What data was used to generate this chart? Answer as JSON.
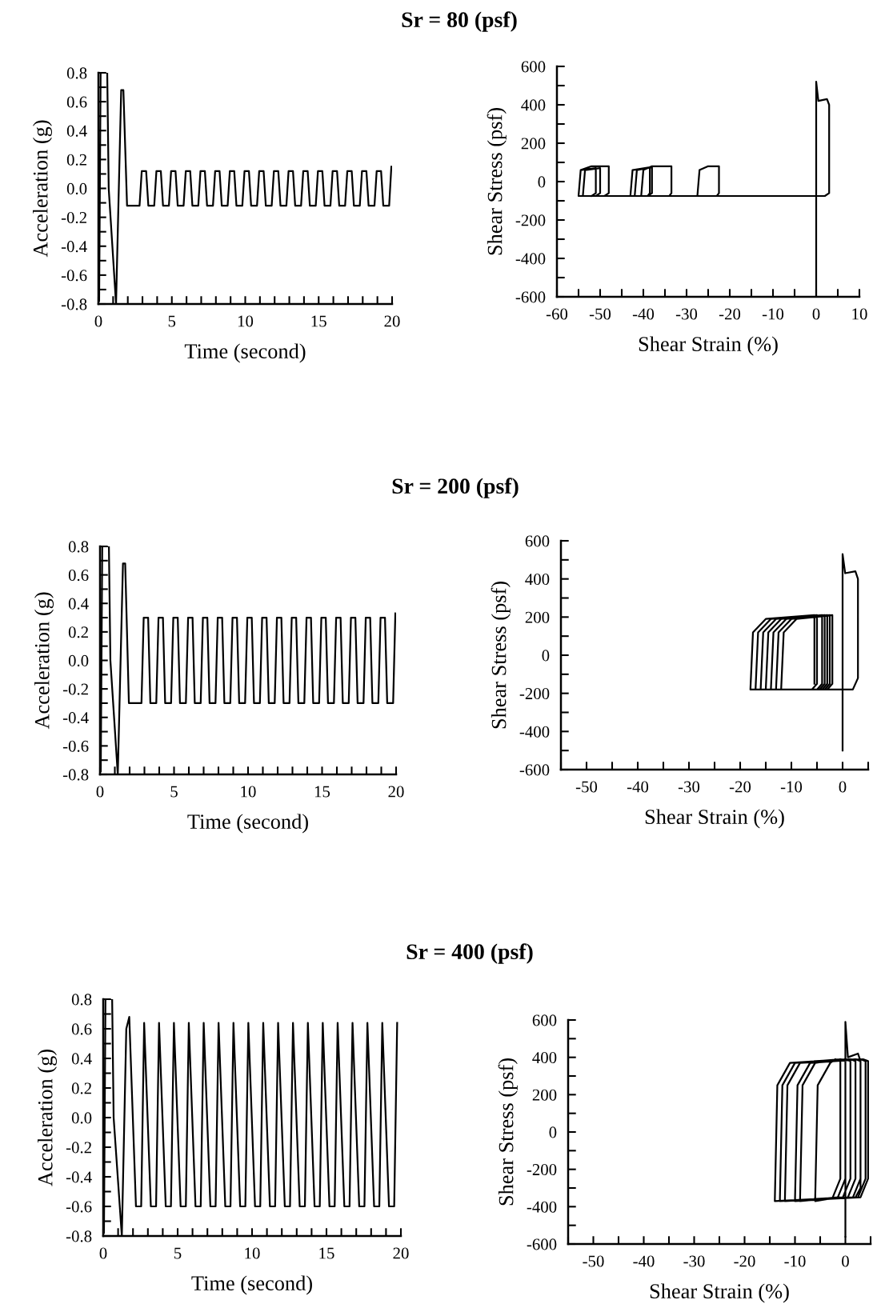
{
  "chart_data": [
    {
      "type": "line",
      "title": "Sr = 80 (psf)",
      "xlabel": "Time (second)",
      "ylabel": "Acceleration (g)",
      "xlim": [
        0,
        20
      ],
      "ylim": [
        -0.8,
        0.8
      ],
      "xticks": [
        0,
        {
          "value": 1,
          "label": null
        },
        {
          "value": 2,
          "label": null
        },
        {
          "value": 3,
          "label": null
        },
        {
          "value": 4,
          "label": null
        },
        5,
        {
          "value": 6,
          "label": null
        },
        {
          "value": 7,
          "label": null
        },
        {
          "value": 8,
          "label": null
        },
        {
          "value": 9,
          "label": null
        },
        10,
        {
          "value": 11,
          "label": null
        },
        {
          "value": 12,
          "label": null
        },
        {
          "value": 13,
          "label": null
        },
        {
          "value": 14,
          "label": null
        },
        15,
        {
          "value": 16,
          "label": null
        },
        {
          "value": 17,
          "label": null
        },
        {
          "value": 18,
          "label": null
        },
        {
          "value": 19,
          "label": null
        },
        20
      ],
      "yticks": [
        {
          "value": -0.8,
          "label": "-0.8"
        },
        {
          "value": -0.7,
          "label": null
        },
        {
          "value": -0.6,
          "label": "-0.6"
        },
        {
          "value": -0.5,
          "label": null
        },
        {
          "value": -0.4,
          "label": "-0.4"
        },
        {
          "value": -0.3,
          "label": null
        },
        {
          "value": -0.2,
          "label": "-0.2"
        },
        {
          "value": -0.1,
          "label": null
        },
        {
          "value": 0,
          "label": "0.0"
        },
        {
          "value": 0.1,
          "label": null
        },
        {
          "value": 0.2,
          "label": "0.2"
        },
        {
          "value": 0.3,
          "label": null
        },
        {
          "value": 0.4,
          "label": "0.4"
        },
        {
          "value": 0.5,
          "label": null
        },
        {
          "value": 0.6,
          "label": "0.6"
        },
        {
          "value": 0.7,
          "label": null
        },
        {
          "value": 0.8,
          "label": "0.8"
        }
      ],
      "grid": false,
      "line_style": "solid",
      "marker": "none",
      "series": [
        {
          "color": "#000000",
          "x": [
            0,
            0.05,
            0.15,
            0.6,
            0.7,
            1.2,
            1.55,
            1.7,
            1.95,
            2.8,
            2.95,
            3.25,
            3.4,
            3.8,
            3.95,
            4.25,
            4.4,
            4.8,
            4.95,
            5.25,
            5.4,
            5.8,
            5.95,
            6.25,
            6.4,
            6.8,
            6.95,
            7.25,
            7.4,
            7.8,
            7.95,
            8.25,
            8.4,
            8.8,
            8.95,
            9.25,
            9.4,
            9.8,
            9.95,
            10.25,
            10.4,
            10.8,
            10.95,
            11.25,
            11.4,
            11.8,
            11.95,
            12.25,
            12.4,
            12.8,
            12.95,
            13.25,
            13.4,
            13.8,
            13.95,
            14.25,
            14.4,
            14.8,
            14.95,
            15.25,
            15.4,
            15.8,
            15.95,
            16.25,
            16.4,
            16.8,
            16.95,
            17.25,
            17.4,
            17.8,
            17.95,
            18.25,
            18.4,
            18.8,
            18.95,
            19.25,
            19.4,
            19.8,
            19.95
          ],
          "values": [
            0,
            -0.78,
            0.8,
            0.8,
            0,
            -0.8,
            0.68,
            0.68,
            -0.12,
            -0.12,
            0.12,
            0.12,
            -0.12,
            -0.12,
            0.12,
            0.12,
            -0.12,
            -0.12,
            0.12,
            0.12,
            -0.12,
            -0.12,
            0.12,
            0.12,
            -0.12,
            -0.12,
            0.12,
            0.12,
            -0.12,
            -0.12,
            0.12,
            0.12,
            -0.12,
            -0.12,
            0.12,
            0.12,
            -0.12,
            -0.12,
            0.12,
            0.12,
            -0.12,
            -0.12,
            0.12,
            0.12,
            -0.12,
            -0.12,
            0.12,
            0.12,
            -0.12,
            -0.12,
            0.12,
            0.12,
            -0.12,
            -0.12,
            0.12,
            0.12,
            -0.12,
            -0.12,
            0.12,
            0.12,
            -0.12,
            -0.12,
            0.12,
            0.12,
            -0.12,
            -0.12,
            0.12,
            0.12,
            -0.12,
            -0.12,
            0.12,
            0.12,
            -0.12,
            -0.12,
            0.12,
            0.12,
            -0.12,
            -0.12,
            0.15
          ]
        }
      ]
    },
    {
      "type": "line",
      "xlabel": "Shear Strain (%)",
      "ylabel": "Shear Stress (psf)",
      "xlim": [
        -60,
        10
      ],
      "ylim": [
        -600,
        600
      ],
      "xticks": [
        -60,
        {
          "value": -55,
          "label": null
        },
        -50,
        {
          "value": -45,
          "label": null
        },
        -40,
        {
          "value": -35,
          "label": null
        },
        -30,
        {
          "value": -25,
          "label": null
        },
        -20,
        {
          "value": -15,
          "label": null
        },
        -10,
        {
          "value": -5,
          "label": null
        },
        0,
        {
          "value": 5,
          "label": null
        },
        10
      ],
      "yticks": [
        -600,
        {
          "value": -500,
          "label": null
        },
        -400,
        {
          "value": -300,
          "label": null
        },
        -200,
        {
          "value": -100,
          "label": null
        },
        0,
        {
          "value": 100,
          "label": null
        },
        200,
        {
          "value": 300,
          "label": null
        },
        400,
        {
          "value": 500,
          "label": null
        },
        600
      ],
      "grid": false,
      "line_style": "solid",
      "marker": "none",
      "series": [
        {
          "color": "#000000",
          "x": [
            0,
            0,
            0.5,
            2.5,
            3,
            3,
            2,
            -27.5,
            -27,
            -25,
            -22.5,
            -22.5,
            -23,
            -40.5,
            -40,
            -38,
            -33.5,
            -33.5,
            -34,
            -43,
            -42.5,
            -38.5,
            -38.5,
            -39,
            -42,
            -41.5,
            -38,
            -38,
            -39,
            -55,
            -54.5,
            -52,
            -48,
            -48,
            -49,
            -54,
            -53.5,
            -50,
            -50,
            -51,
            -55,
            -54.5,
            -51,
            -51,
            -52
          ],
          "values": [
            -600,
            520,
            420,
            430,
            400,
            -60,
            -75,
            -75,
            60,
            80,
            80,
            -60,
            -75,
            -75,
            60,
            80,
            80,
            -60,
            -75,
            -75,
            60,
            75,
            -60,
            -75,
            -75,
            60,
            75,
            -60,
            -75,
            -75,
            60,
            80,
            80,
            -60,
            -75,
            -75,
            60,
            70,
            -60,
            -75,
            -75,
            60,
            70,
            -60,
            -75
          ]
        }
      ]
    },
    {
      "type": "line",
      "title": "Sr = 200 (psf)",
      "xlabel": "Time (second)",
      "ylabel": "Acceleration (g)",
      "xlim": [
        0,
        20
      ],
      "ylim": [
        -0.8,
        0.8
      ],
      "xticks": [
        0,
        {
          "value": 1,
          "label": null
        },
        {
          "value": 2,
          "label": null
        },
        {
          "value": 3,
          "label": null
        },
        {
          "value": 4,
          "label": null
        },
        5,
        {
          "value": 6,
          "label": null
        },
        {
          "value": 7,
          "label": null
        },
        {
          "value": 8,
          "label": null
        },
        {
          "value": 9,
          "label": null
        },
        10,
        {
          "value": 11,
          "label": null
        },
        {
          "value": 12,
          "label": null
        },
        {
          "value": 13,
          "label": null
        },
        {
          "value": 14,
          "label": null
        },
        15,
        {
          "value": 16,
          "label": null
        },
        {
          "value": 17,
          "label": null
        },
        {
          "value": 18,
          "label": null
        },
        {
          "value": 19,
          "label": null
        },
        20
      ],
      "yticks": [
        {
          "value": -0.8,
          "label": "-0.8"
        },
        {
          "value": -0.7,
          "label": null
        },
        {
          "value": -0.6,
          "label": "-0.6"
        },
        {
          "value": -0.5,
          "label": null
        },
        {
          "value": -0.4,
          "label": "-0.4"
        },
        {
          "value": -0.3,
          "label": null
        },
        {
          "value": -0.2,
          "label": "-0.2"
        },
        {
          "value": -0.1,
          "label": null
        },
        {
          "value": 0,
          "label": "0.0"
        },
        {
          "value": 0.1,
          "label": null
        },
        {
          "value": 0.2,
          "label": "0.2"
        },
        {
          "value": 0.3,
          "label": null
        },
        {
          "value": 0.4,
          "label": "0.4"
        },
        {
          "value": 0.5,
          "label": null
        },
        {
          "value": 0.6,
          "label": "0.6"
        },
        {
          "value": 0.7,
          "label": null
        },
        {
          "value": 0.8,
          "label": "0.8"
        }
      ],
      "grid": false,
      "line_style": "solid",
      "marker": "none",
      "series": [
        {
          "color": "#000000",
          "x": [
            0,
            0.05,
            0.15,
            0.6,
            0.7,
            1.2,
            1.55,
            1.7,
            1.95,
            2.8,
            2.95,
            3.25,
            3.4,
            3.8,
            3.95,
            4.25,
            4.4,
            4.8,
            4.95,
            5.25,
            5.4,
            5.8,
            5.95,
            6.25,
            6.4,
            6.8,
            6.95,
            7.25,
            7.4,
            7.8,
            7.95,
            8.25,
            8.4,
            8.8,
            8.95,
            9.25,
            9.4,
            9.8,
            9.95,
            10.25,
            10.4,
            10.8,
            10.95,
            11.25,
            11.4,
            11.8,
            11.95,
            12.25,
            12.4,
            12.8,
            12.95,
            13.25,
            13.4,
            13.8,
            13.95,
            14.25,
            14.4,
            14.8,
            14.95,
            15.25,
            15.4,
            15.8,
            15.95,
            16.25,
            16.4,
            16.8,
            16.95,
            17.25,
            17.4,
            17.8,
            17.95,
            18.25,
            18.4,
            18.8,
            18.95,
            19.25,
            19.4,
            19.8,
            19.95
          ],
          "values": [
            0,
            -0.78,
            0.8,
            0.8,
            0,
            -0.8,
            0.68,
            0.68,
            -0.3,
            -0.3,
            0.3,
            0.3,
            -0.3,
            -0.3,
            0.3,
            0.3,
            -0.3,
            -0.3,
            0.3,
            0.3,
            -0.3,
            -0.3,
            0.3,
            0.3,
            -0.3,
            -0.3,
            0.3,
            0.3,
            -0.3,
            -0.3,
            0.3,
            0.3,
            -0.3,
            -0.3,
            0.3,
            0.3,
            -0.3,
            -0.3,
            0.3,
            0.3,
            -0.3,
            -0.3,
            0.3,
            0.3,
            -0.3,
            -0.3,
            0.3,
            0.3,
            -0.3,
            -0.3,
            0.3,
            0.3,
            -0.3,
            -0.3,
            0.3,
            0.3,
            -0.3,
            -0.3,
            0.3,
            0.3,
            -0.3,
            -0.3,
            0.3,
            0.3,
            -0.3,
            -0.3,
            0.3,
            0.3,
            -0.3,
            -0.3,
            0.3,
            0.3,
            -0.3,
            -0.3,
            0.3,
            0.3,
            -0.3,
            -0.3,
            0.33
          ]
        }
      ]
    },
    {
      "type": "line",
      "xlabel": "Shear Strain (%)",
      "ylabel": "Shear Stress (psf)",
      "xlim": [
        -55,
        5
      ],
      "ylim": [
        -600,
        600
      ],
      "xticks": [
        {
          "value": -55,
          "label": null
        },
        -50,
        {
          "value": -45,
          "label": null
        },
        -40,
        {
          "value": -35,
          "label": null
        },
        -30,
        {
          "value": -25,
          "label": null
        },
        -20,
        {
          "value": -15,
          "label": null
        },
        -10,
        {
          "value": -5,
          "label": null
        },
        0,
        {
          "value": 5,
          "label": null
        }
      ],
      "yticks": [
        -600,
        {
          "value": -500,
          "label": null
        },
        -400,
        {
          "value": -300,
          "label": null
        },
        -200,
        {
          "value": -100,
          "label": null
        },
        0,
        {
          "value": 100,
          "label": null
        },
        200,
        {
          "value": 300,
          "label": null
        },
        400,
        {
          "value": 500,
          "label": null
        },
        600
      ],
      "grid": false,
      "line_style": "solid",
      "marker": "none",
      "series": [
        {
          "color": "#000000",
          "x": [
            0,
            0,
            0.5,
            2.5,
            3,
            3,
            2,
            -12,
            -11.5,
            -9,
            -2,
            -2,
            -3,
            -13,
            -12.5,
            -10,
            -2.5,
            -2.5,
            -3.5,
            -14,
            -13.5,
            -11,
            -3,
            -3,
            -4,
            -15,
            -14.5,
            -12,
            -3.5,
            -3.5,
            -4.5,
            -16,
            -15.5,
            -13,
            -4,
            -4,
            -5,
            -17,
            -16.5,
            -14,
            -5,
            -5,
            -6,
            -18,
            -17.5,
            -15,
            -5.5,
            -5.5
          ],
          "values": [
            -500,
            530,
            430,
            440,
            400,
            -120,
            -180,
            -180,
            120,
            190,
            210,
            -150,
            -180,
            -180,
            120,
            190,
            210,
            -150,
            -180,
            -180,
            120,
            190,
            210,
            -150,
            -180,
            -180,
            120,
            190,
            210,
            -150,
            -180,
            -180,
            120,
            190,
            210,
            -150,
            -180,
            -180,
            120,
            190,
            210,
            -150,
            -180,
            -180,
            120,
            190,
            210,
            -150
          ]
        }
      ]
    },
    {
      "type": "line",
      "title": "Sr = 400 (psf)",
      "xlabel": "Time (second)",
      "ylabel": "Acceleration (g)",
      "xlim": [
        0,
        20
      ],
      "ylim": [
        -0.8,
        0.8
      ],
      "xticks": [
        0,
        {
          "value": 1,
          "label": null
        },
        {
          "value": 2,
          "label": null
        },
        {
          "value": 3,
          "label": null
        },
        {
          "value": 4,
          "label": null
        },
        5,
        {
          "value": 6,
          "label": null
        },
        {
          "value": 7,
          "label": null
        },
        {
          "value": 8,
          "label": null
        },
        {
          "value": 9,
          "label": null
        },
        10,
        {
          "value": 11,
          "label": null
        },
        {
          "value": 12,
          "label": null
        },
        {
          "value": 13,
          "label": null
        },
        {
          "value": 14,
          "label": null
        },
        15,
        {
          "value": 16,
          "label": null
        },
        {
          "value": 17,
          "label": null
        },
        {
          "value": 18,
          "label": null
        },
        {
          "value": 19,
          "label": null
        },
        20
      ],
      "yticks": [
        {
          "value": -0.8,
          "label": "-0.8"
        },
        {
          "value": -0.7,
          "label": null
        },
        {
          "value": -0.6,
          "label": "-0.6"
        },
        {
          "value": -0.5,
          "label": null
        },
        {
          "value": -0.4,
          "label": "-0.4"
        },
        {
          "value": -0.3,
          "label": null
        },
        {
          "value": -0.2,
          "label": "-0.2"
        },
        {
          "value": -0.1,
          "label": null
        },
        {
          "value": 0,
          "label": "0.0"
        },
        {
          "value": 0.1,
          "label": null
        },
        {
          "value": 0.2,
          "label": "0.2"
        },
        {
          "value": 0.3,
          "label": null
        },
        {
          "value": 0.4,
          "label": "0.4"
        },
        {
          "value": 0.5,
          "label": null
        },
        {
          "value": 0.6,
          "label": "0.6"
        },
        {
          "value": 0.7,
          "label": null
        },
        {
          "value": 0.8,
          "label": "0.8"
        }
      ],
      "grid": false,
      "line_style": "solid",
      "marker": "none",
      "series": [
        {
          "color": "#000000",
          "x": [
            0,
            0.05,
            0.15,
            0.6,
            0.7,
            1.25,
            1.55,
            1.75,
            2.2,
            2.55,
            2.75,
            3.2,
            3.55,
            3.75,
            4.2,
            4.55,
            4.75,
            5.2,
            5.55,
            5.75,
            6.2,
            6.55,
            6.75,
            7.2,
            7.55,
            7.75,
            8.2,
            8.55,
            8.75,
            9.2,
            9.55,
            9.75,
            10.2,
            10.55,
            10.75,
            11.2,
            11.55,
            11.75,
            12.2,
            12.55,
            12.75,
            13.2,
            13.55,
            13.75,
            14.2,
            14.55,
            14.75,
            15.2,
            15.55,
            15.75,
            16.2,
            16.55,
            16.75,
            17.2,
            17.55,
            17.75,
            18.2,
            18.55,
            18.75,
            19.2,
            19.55,
            19.75
          ],
          "values": [
            0,
            -0.78,
            0.8,
            0.8,
            0,
            -0.8,
            0.6,
            0.68,
            -0.6,
            -0.6,
            0.64,
            -0.6,
            -0.6,
            0.64,
            -0.6,
            -0.6,
            0.64,
            -0.6,
            -0.6,
            0.64,
            -0.6,
            -0.6,
            0.64,
            -0.6,
            -0.6,
            0.64,
            -0.6,
            -0.6,
            0.64,
            -0.6,
            -0.6,
            0.64,
            -0.6,
            -0.6,
            0.64,
            -0.6,
            -0.6,
            0.64,
            -0.6,
            -0.6,
            0.64,
            -0.6,
            -0.6,
            0.64,
            -0.6,
            -0.6,
            0.64,
            -0.6,
            -0.6,
            0.64,
            -0.6,
            -0.6,
            0.64,
            -0.6,
            -0.6,
            0.64,
            -0.6,
            -0.6,
            0.64,
            -0.6,
            -0.6,
            0.64
          ]
        }
      ]
    },
    {
      "type": "line",
      "xlabel": "Shear Strain (%)",
      "ylabel": "Shear Stress (psf)",
      "xlim": [
        -55,
        5
      ],
      "ylim": [
        -600,
        600
      ],
      "xticks": [
        {
          "value": -55,
          "label": null
        },
        -50,
        {
          "value": -45,
          "label": null
        },
        -40,
        {
          "value": -35,
          "label": null
        },
        -30,
        {
          "value": -25,
          "label": null
        },
        -20,
        {
          "value": -15,
          "label": null
        },
        -10,
        {
          "value": -5,
          "label": null
        },
        0,
        {
          "value": 5,
          "label": null
        }
      ],
      "yticks": [
        -600,
        {
          "value": -500,
          "label": null
        },
        -400,
        {
          "value": -300,
          "label": null
        },
        -200,
        {
          "value": -100,
          "label": null
        },
        0,
        {
          "value": 100,
          "label": null
        },
        200,
        {
          "value": 300,
          "label": null
        },
        400,
        {
          "value": 500,
          "label": null
        },
        600
      ],
      "grid": false,
      "line_style": "solid",
      "marker": "none",
      "series": [
        {
          "color": "#000000",
          "x": [
            0,
            0,
            0.5,
            2.5,
            3,
            3,
            2,
            -10,
            -9.5,
            -7,
            3.5,
            4.5,
            4.5,
            3,
            -12,
            -11.5,
            -9,
            3,
            4,
            4,
            2.5,
            -13,
            -12.5,
            -10,
            2,
            3,
            3,
            1.5,
            -14,
            -13.5,
            -11,
            1,
            2,
            2,
            0.5,
            -14,
            -13.5,
            -11,
            0,
            1,
            1,
            -0.5,
            -13,
            -12.5,
            -10,
            -1,
            0,
            0,
            -1.5,
            -9,
            -8.5,
            -6,
            -1,
            0,
            0,
            -1.5,
            -6,
            -5.5,
            -3,
            -2,
            -1,
            -1,
            -2.5
          ],
          "values": [
            -560,
            590,
            400,
            420,
            380,
            -300,
            -350,
            -370,
            250,
            370,
            390,
            380,
            -250,
            -350,
            -370,
            250,
            370,
            390,
            380,
            -250,
            -350,
            -370,
            250,
            370,
            390,
            380,
            -250,
            -350,
            -370,
            250,
            370,
            390,
            380,
            -250,
            -350,
            -370,
            250,
            370,
            390,
            380,
            -250,
            -350,
            -370,
            250,
            370,
            390,
            380,
            -250,
            -350,
            -370,
            250,
            370,
            390,
            380,
            -250,
            -350,
            -370,
            250,
            370,
            390,
            380,
            -250,
            -350
          ]
        }
      ]
    }
  ]
}
